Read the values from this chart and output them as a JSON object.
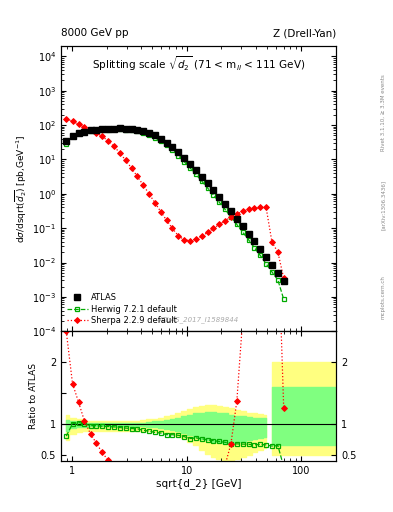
{
  "title_left": "8000 GeV pp",
  "title_right": "Z (Drell-Yan)",
  "panel_title": "Splitting scale $\\sqrt{d_2}$ (71 < m$_{ll}$ < 111 GeV)",
  "xlabel": "sqrt{d_2} [GeV]",
  "ylabel_main": "d$\\sigma$/dsqrt($\\overline{d_2}$) [pb,GeV$^{-1}$]",
  "ylabel_ratio": "Ratio to ATLAS",
  "watermark": "ATLAS_2017_I1589844",
  "atlas_x": [
    0.89,
    1.01,
    1.14,
    1.28,
    1.45,
    1.63,
    1.83,
    2.06,
    2.32,
    2.61,
    2.93,
    3.3,
    3.71,
    4.17,
    4.69,
    5.28,
    5.94,
    6.67,
    7.5,
    8.44,
    9.49,
    10.67,
    12.0,
    13.49,
    15.18,
    17.07,
    19.19,
    21.6,
    24.28,
    27.32,
    30.73,
    34.56,
    38.87,
    43.72,
    49.16,
    55.32,
    62.25,
    70.0
  ],
  "atlas_y": [
    35.0,
    48.0,
    57.0,
    65.0,
    70.0,
    73.0,
    76.0,
    78.0,
    79.0,
    80.0,
    79.0,
    77.0,
    73.0,
    67.0,
    59.0,
    50.0,
    40.0,
    31.0,
    22.5,
    16.0,
    11.0,
    7.5,
    4.8,
    3.1,
    2.0,
    1.28,
    0.8,
    0.5,
    0.31,
    0.19,
    0.115,
    0.069,
    0.041,
    0.024,
    0.014,
    0.0083,
    0.0048,
    0.0028
  ],
  "herwig_x": [
    0.89,
    1.01,
    1.14,
    1.28,
    1.45,
    1.63,
    1.83,
    2.06,
    2.32,
    2.61,
    2.93,
    3.3,
    3.71,
    4.17,
    4.69,
    5.28,
    5.94,
    6.67,
    7.5,
    8.44,
    9.49,
    10.67,
    12.0,
    13.49,
    15.18,
    17.07,
    19.19,
    21.6,
    24.28,
    27.32,
    30.73,
    34.56,
    38.87,
    43.72,
    49.16,
    55.32,
    62.25,
    70.0
  ],
  "herwig_y": [
    28.0,
    48.0,
    58.0,
    64.0,
    68.0,
    71.0,
    73.0,
    74.5,
    75.0,
    75.0,
    73.5,
    71.0,
    67.0,
    60.0,
    52.0,
    43.0,
    34.0,
    25.5,
    18.5,
    13.0,
    8.7,
    5.7,
    3.7,
    2.35,
    1.48,
    0.93,
    0.57,
    0.35,
    0.21,
    0.128,
    0.077,
    0.046,
    0.027,
    0.016,
    0.0092,
    0.0053,
    0.0031,
    0.00085
  ],
  "sherpa_x": [
    0.89,
    1.01,
    1.14,
    1.28,
    1.45,
    1.63,
    1.83,
    2.06,
    2.32,
    2.61,
    2.93,
    3.3,
    3.71,
    4.17,
    4.69,
    5.28,
    5.94,
    6.67,
    7.5,
    8.44,
    9.49,
    10.67,
    12.0,
    13.49,
    15.18,
    17.07,
    19.19,
    21.6,
    24.28,
    27.32,
    30.73,
    34.56,
    38.87,
    43.72,
    49.16,
    55.32,
    62.25,
    70.0
  ],
  "sherpa_y": [
    150.0,
    130.0,
    105.0,
    88.0,
    74.0,
    60.0,
    47.0,
    35.0,
    24.0,
    15.5,
    9.5,
    5.6,
    3.2,
    1.8,
    1.0,
    0.55,
    0.3,
    0.17,
    0.098,
    0.06,
    0.046,
    0.043,
    0.048,
    0.058,
    0.075,
    0.098,
    0.128,
    0.165,
    0.21,
    0.26,
    0.31,
    0.35,
    0.38,
    0.4,
    0.4,
    0.039,
    0.02,
    0.0035
  ],
  "herwig_ratio": [
    0.8,
    1.0,
    1.02,
    1.0,
    0.97,
    0.97,
    0.96,
    0.955,
    0.949,
    0.938,
    0.93,
    0.922,
    0.918,
    0.896,
    0.881,
    0.86,
    0.85,
    0.823,
    0.822,
    0.813,
    0.791,
    0.76,
    0.771,
    0.758,
    0.74,
    0.727,
    0.713,
    0.7,
    0.677,
    0.674,
    0.67,
    0.667,
    0.658,
    0.667,
    0.657,
    0.639,
    0.646,
    0.304
  ],
  "sherpa_ratio": [
    2.5,
    1.65,
    1.35,
    1.05,
    0.835,
    0.685,
    0.535,
    0.41,
    0.302,
    0.194,
    0.12,
    0.073,
    0.044,
    0.027,
    0.017,
    0.011,
    0.0075,
    0.0055,
    0.00435,
    0.00375,
    0.00418,
    0.00573,
    0.01,
    0.0187,
    0.0375,
    0.0766,
    0.16,
    0.33,
    0.677,
    1.368,
    2.696,
    5.07,
    9.27,
    16.67,
    28.6,
    4.7,
    4.17,
    1.25
  ],
  "band_yellow_x": [
    0.89,
    1.01,
    1.14,
    1.28,
    1.45,
    1.63,
    1.83,
    2.06,
    2.32,
    2.61,
    2.93,
    3.3,
    3.71,
    4.17,
    4.69,
    5.28,
    5.94,
    6.67,
    7.5,
    8.44,
    9.49,
    10.67,
    12.0,
    13.49,
    15.18,
    17.07,
    19.19,
    21.6,
    24.28,
    27.32,
    30.73,
    34.56,
    38.87,
    43.72,
    49.16
  ],
  "band_yellow_lo": [
    0.73,
    0.83,
    0.86,
    0.88,
    0.89,
    0.89,
    0.89,
    0.89,
    0.89,
    0.89,
    0.89,
    0.89,
    0.89,
    0.89,
    0.88,
    0.87,
    0.86,
    0.85,
    0.83,
    0.8,
    0.77,
    0.71,
    0.65,
    0.58,
    0.51,
    0.46,
    0.43,
    0.41,
    0.41,
    0.43,
    0.46,
    0.5,
    0.54,
    0.58,
    0.61
  ],
  "band_yellow_hi": [
    1.14,
    1.09,
    1.07,
    1.05,
    1.05,
    1.05,
    1.05,
    1.05,
    1.05,
    1.05,
    1.05,
    1.05,
    1.05,
    1.06,
    1.07,
    1.08,
    1.1,
    1.12,
    1.14,
    1.17,
    1.2,
    1.24,
    1.27,
    1.29,
    1.3,
    1.3,
    1.29,
    1.27,
    1.25,
    1.22,
    1.2,
    1.18,
    1.17,
    1.16,
    1.15
  ],
  "band_green_lo": [
    0.88,
    0.93,
    0.94,
    0.95,
    0.96,
    0.96,
    0.96,
    0.96,
    0.96,
    0.96,
    0.96,
    0.96,
    0.96,
    0.96,
    0.95,
    0.94,
    0.93,
    0.92,
    0.9,
    0.88,
    0.85,
    0.82,
    0.79,
    0.76,
    0.73,
    0.71,
    0.7,
    0.69,
    0.69,
    0.7,
    0.71,
    0.73,
    0.75,
    0.77,
    0.79
  ],
  "band_green_hi": [
    1.06,
    1.04,
    1.03,
    1.02,
    1.02,
    1.02,
    1.02,
    1.02,
    1.02,
    1.02,
    1.02,
    1.02,
    1.02,
    1.02,
    1.03,
    1.04,
    1.05,
    1.06,
    1.08,
    1.1,
    1.12,
    1.15,
    1.17,
    1.18,
    1.19,
    1.19,
    1.18,
    1.17,
    1.15,
    1.13,
    1.12,
    1.11,
    1.1,
    1.09,
    1.09
  ],
  "band_last_yellow_lo": 0.5,
  "band_last_yellow_hi": 2.0,
  "band_last_green_lo": 0.65,
  "band_last_green_hi": 1.6,
  "band_last_x_start": 55.0,
  "band_last_x_end": 200.0,
  "xlim": [
    0.8,
    200.0
  ],
  "ylim_main": [
    0.0001,
    20000.0
  ],
  "ylim_ratio": [
    0.4,
    2.5
  ],
  "atlas_color": "black",
  "herwig_color": "#00aa00",
  "sherpa_color": "red",
  "yellow_color": "#ffff80",
  "green_color": "#80ff80"
}
